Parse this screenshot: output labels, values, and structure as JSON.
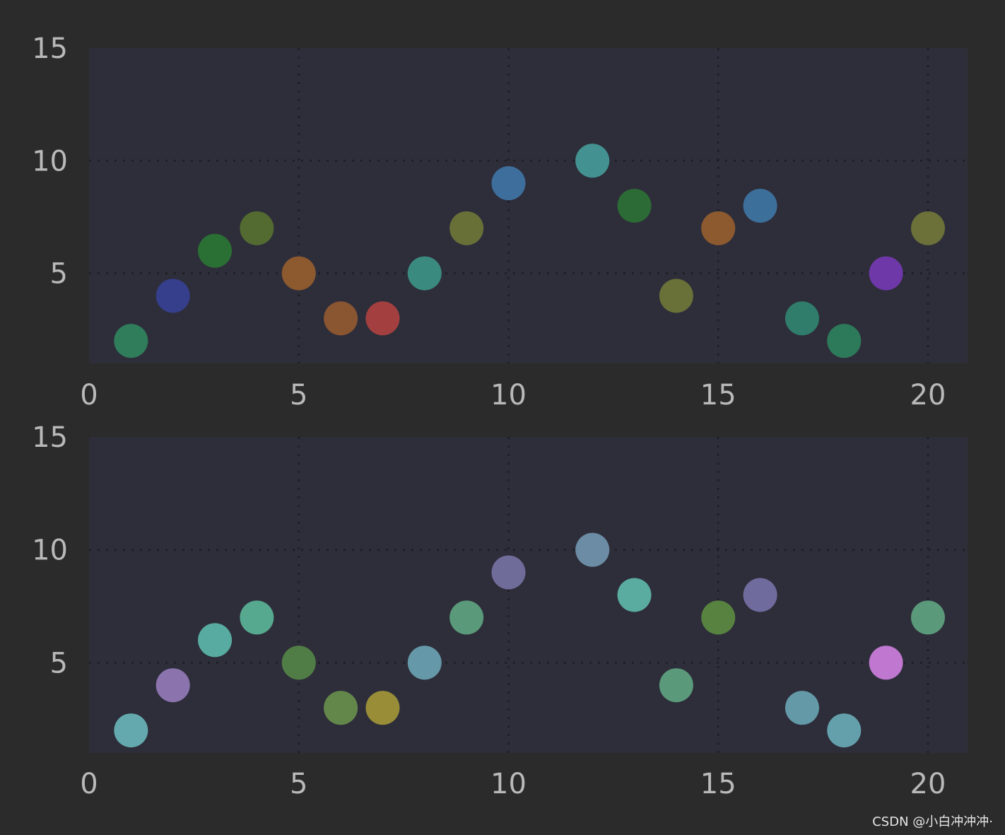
{
  "background": "#2b2b2b",
  "plot_background": "#2e2e3a",
  "grid_color": "#1f1f27",
  "tick_color": "#b9b9b9",
  "watermark": "CSDN @小白冲冲冲·",
  "chart_data": [
    {
      "type": "scatter",
      "title": "",
      "xlabel": "",
      "ylabel": "",
      "xlim": [
        0,
        21
      ],
      "ylim": [
        1,
        15
      ],
      "xticks": [
        0,
        5,
        10,
        15,
        20
      ],
      "yticks": [
        5,
        10,
        15
      ],
      "grid": true,
      "series": [
        {
          "x": [
            1,
            2,
            3,
            4,
            5,
            6,
            7,
            8,
            9,
            10,
            12,
            13,
            14,
            15,
            16,
            17,
            18,
            19,
            20
          ],
          "y": [
            2,
            4,
            6,
            7,
            5,
            3,
            3,
            5,
            7,
            9,
            10,
            8,
            4,
            7,
            8,
            3,
            2,
            5,
            7
          ],
          "colors": [
            "#2f7d5b",
            "#353f8c",
            "#2a6f34",
            "#536b31",
            "#8d592f",
            "#8a5531",
            "#a33f3f",
            "#3b8a7f",
            "#687038",
            "#3e6f9c",
            "#439291",
            "#2c6b35",
            "#697038",
            "#8d5a2f",
            "#3d6f9b",
            "#2f7d6a",
            "#2d7a5b",
            "#6e38a8",
            "#6c7039"
          ]
        }
      ]
    },
    {
      "type": "scatter",
      "title": "",
      "xlabel": "",
      "ylabel": "",
      "xlim": [
        0,
        21
      ],
      "ylim": [
        1,
        15
      ],
      "xticks": [
        0,
        5,
        10,
        15,
        20
      ],
      "yticks": [
        5,
        10,
        15
      ],
      "grid": true,
      "series": [
        {
          "x": [
            1,
            2,
            3,
            4,
            5,
            6,
            7,
            8,
            9,
            10,
            12,
            13,
            14,
            15,
            16,
            17,
            18,
            19,
            20
          ],
          "y": [
            2,
            4,
            6,
            7,
            5,
            3,
            3,
            5,
            7,
            9,
            10,
            8,
            4,
            7,
            8,
            3,
            2,
            5,
            7
          ],
          "colors": [
            "#63a9ad",
            "#8b73ae",
            "#58aba1",
            "#56a88e",
            "#507d45",
            "#63874a",
            "#998d38",
            "#6598a8",
            "#5a9a7a",
            "#6f6c9a",
            "#6b8ca4",
            "#5aaba0",
            "#5a9a7b",
            "#57823f",
            "#6f6b9d",
            "#6499a8",
            "#63a0ab",
            "#bf77cf",
            "#5a997a"
          ]
        }
      ]
    }
  ]
}
